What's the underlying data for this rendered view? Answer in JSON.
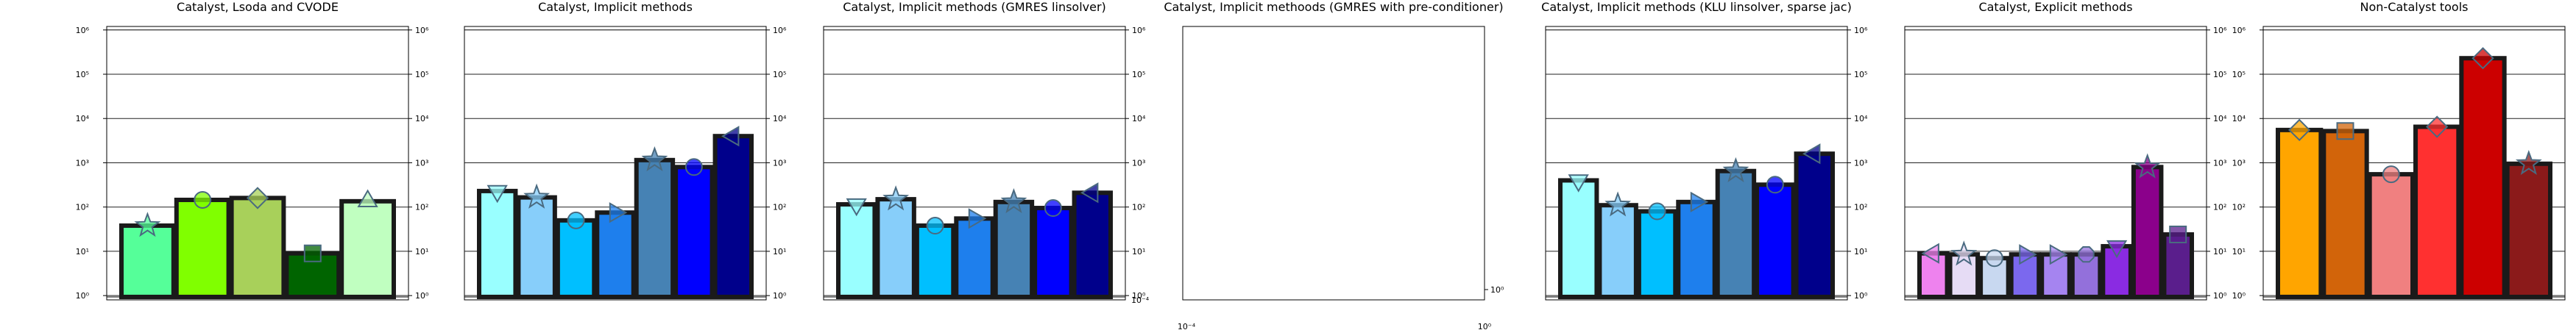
{
  "chart_data": [
    {
      "type": "bar",
      "title": "Catalyst, Lsoda and CVODE",
      "yscale": "log",
      "ylim": [
        0.8,
        1200000
      ],
      "yticks": [
        "10⁰",
        "10¹",
        "10²",
        "10³",
        "10⁴",
        "10⁵",
        "10⁶"
      ],
      "ytick_side": "both",
      "values": [
        38,
        145,
        160,
        9,
        135
      ],
      "colors": [
        "#55ff99",
        "#80ff00",
        "#a8d05a",
        "#006400",
        "#c0ffc0"
      ],
      "markers": [
        "star",
        "circle",
        "diamond",
        "square",
        "triangle-up"
      ]
    },
    {
      "type": "bar",
      "title": "Catalyst, Implicit methods",
      "yscale": "log",
      "ylim": [
        0.8,
        1200000
      ],
      "yticks": [
        "10⁰",
        "10¹",
        "10²",
        "10³",
        "10⁴",
        "10⁵",
        "10⁶"
      ],
      "ytick_side": "right",
      "values": [
        230,
        165,
        50,
        75,
        1150,
        800,
        4000
      ],
      "colors": [
        "#99ffff",
        "#87cefa",
        "#00bfff",
        "#1e7fed",
        "#4682b4",
        "#0000ff",
        "#00008b"
      ],
      "markers": [
        "triangle-down",
        "star",
        "circle",
        "triangle-right",
        "star",
        "circle",
        "triangle-left"
      ]
    },
    {
      "type": "bar",
      "title": "Catalyst, Implicit methods (GMRES linsolver)",
      "yscale": "log",
      "ylim": [
        0.8,
        1200000
      ],
      "yticks": [
        "10⁰",
        "10¹",
        "10²",
        "10³",
        "10⁴",
        "10⁵",
        "10⁶"
      ],
      "ytick_side": "right",
      "values": [
        115,
        150,
        38,
        55,
        130,
        95,
        210
      ],
      "colors": [
        "#99ffff",
        "#87cefa",
        "#00bfff",
        "#1e7fed",
        "#4682b4",
        "#0000ff",
        "#00008b"
      ],
      "markers": [
        "triangle-down",
        "star",
        "circle",
        "triangle-right",
        "star",
        "circle",
        "triangle-left"
      ],
      "bottom_right_tick": "10⁻⁴"
    },
    {
      "type": "bar",
      "title": "Catalyst, Implicit methoods (GMRES with pre-conditioner)",
      "yscale": "log",
      "empty": true,
      "ytick_side": "right",
      "yticks": [
        "10⁰"
      ],
      "xticks": [
        "10⁻⁴",
        "10⁰"
      ],
      "values": []
    },
    {
      "type": "bar",
      "title": "Catalyst, Implicit methods (KLU linsolver, sparse jac)",
      "yscale": "log",
      "ylim": [
        0.8,
        1200000
      ],
      "yticks": [
        "10⁰",
        "10¹",
        "10²",
        "10³",
        "10⁴",
        "10⁵",
        "10⁶"
      ],
      "ytick_side": "right",
      "values": [
        400,
        110,
        80,
        130,
        650,
        320,
        1600
      ],
      "colors": [
        "#99ffff",
        "#87cefa",
        "#00bfff",
        "#1e7fed",
        "#4682b4",
        "#0000ff",
        "#00008b"
      ],
      "markers": [
        "triangle-down",
        "star",
        "circle",
        "triangle-right",
        "star",
        "circle",
        "triangle-left"
      ]
    },
    {
      "type": "bar",
      "title": "Catalyst, Explicit methods",
      "yscale": "log",
      "ylim": [
        0.8,
        1200000
      ],
      "yticks": [
        "10⁰",
        "10¹",
        "10²",
        "10³",
        "10⁴",
        "10⁵",
        "10⁶"
      ],
      "ytick_side": "right",
      "values": [
        9,
        8.5,
        7,
        8.5,
        8.5,
        8.5,
        13,
        800,
        24
      ],
      "colors": [
        "#ee82ee",
        "#e6dcf5",
        "#c8d8f0",
        "#7b68ee",
        "#a584f0",
        "#9370db",
        "#8a2be2",
        "#8b008b",
        "#5a1e8c"
      ],
      "markers": [
        "triangle-left",
        "star",
        "circle",
        "triangle-right",
        "triangle-right",
        "octagon",
        "triangle-down",
        "star",
        "square"
      ]
    },
    {
      "type": "bar",
      "title": "Non-Catalyst tools",
      "yscale": "log",
      "ylim": [
        0.8,
        1200000
      ],
      "yticks": [
        "10⁰",
        "10¹",
        "10²",
        "10³",
        "10⁴",
        "10⁵",
        "10⁶"
      ],
      "ytick_side": "left",
      "values": [
        5500,
        5200,
        550,
        6500,
        230000,
        950
      ],
      "colors": [
        "#ffa500",
        "#d2640a",
        "#f08080",
        "#ff3030",
        "#cc0000",
        "#8b1a1a"
      ],
      "markers": [
        "diamond",
        "square",
        "circle",
        "diamond",
        "diamond",
        "star"
      ]
    }
  ]
}
